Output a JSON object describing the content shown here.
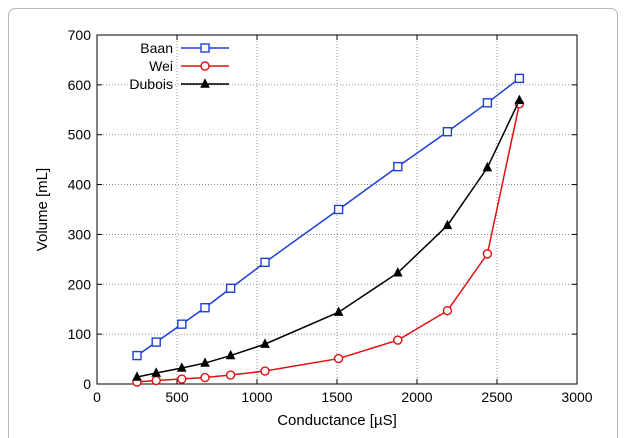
{
  "chart_data": {
    "type": "line",
    "title": "",
    "xlabel": "Conductance [µS]",
    "ylabel": "Volume [mL]",
    "xlim": [
      0,
      3000
    ],
    "ylim": [
      0,
      700
    ],
    "xticks": [
      "0",
      "500",
      "1000",
      "1500",
      "2000",
      "2500",
      "3000"
    ],
    "yticks": [
      "0",
      "100",
      "200",
      "300",
      "400",
      "500",
      "600",
      "700"
    ],
    "grid": true,
    "legend_position": "top-left",
    "series": [
      {
        "name": "Baan",
        "color": "#1f3fd6",
        "marker": "square",
        "x": [
          250,
          370,
          530,
          675,
          835,
          1050,
          1510,
          1880,
          2190,
          2440,
          2640
        ],
        "y": [
          57,
          84,
          120,
          153,
          192,
          244,
          350,
          436,
          506,
          564,
          613
        ]
      },
      {
        "name": "Wei",
        "color": "#e01010",
        "marker": "circle",
        "x": [
          250,
          370,
          530,
          675,
          835,
          1050,
          1510,
          1880,
          2190,
          2440,
          2640
        ],
        "y": [
          4,
          7,
          10,
          13,
          18,
          26,
          51,
          88,
          147,
          261,
          562
        ]
      },
      {
        "name": "Dubois",
        "color": "#000000",
        "marker": "triangle",
        "x": [
          250,
          370,
          530,
          675,
          835,
          1050,
          1510,
          1880,
          2190,
          2440,
          2640
        ],
        "y": [
          14,
          22,
          32,
          42,
          57,
          80,
          144,
          223,
          318,
          434,
          569
        ]
      }
    ]
  }
}
